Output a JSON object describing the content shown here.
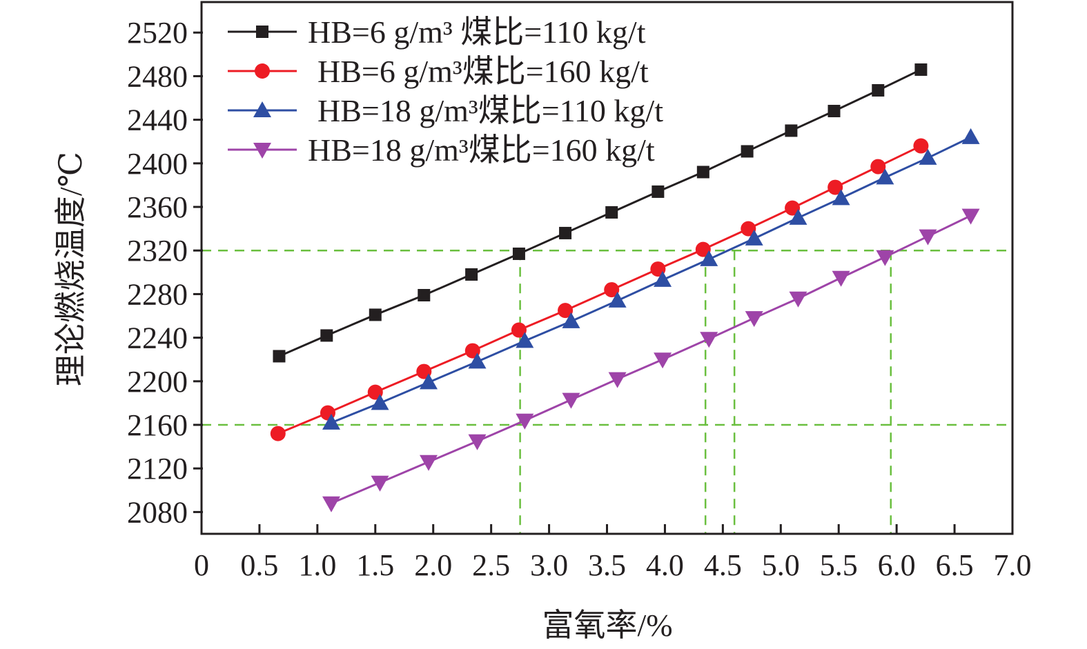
{
  "chart_data": {
    "type": "line",
    "xlabel": "富氧率/%",
    "ylabel": "理论燃烧温度/℃",
    "xlim": [
      0,
      7.0
    ],
    "ylim": [
      2060,
      2548
    ],
    "xticks": [
      "0",
      "0.5",
      "1.0",
      "1.5",
      "2.0",
      "2.5",
      "3.0",
      "3.5",
      "4.0",
      "4.5",
      "5.0",
      "5.5",
      "6.0",
      "6.5",
      "7.0"
    ],
    "yticks": [
      "2080",
      "2120",
      "2160",
      "2200",
      "2240",
      "2280",
      "2320",
      "2360",
      "2400",
      "2440",
      "2480",
      "2520"
    ],
    "grid": false,
    "legend_placement": "top-left",
    "series": [
      {
        "name": "HB=6 g/m³ 煤比=110 kg/t",
        "color": "#231f20",
        "marker": "square",
        "x": [
          0.67,
          1.08,
          1.5,
          1.92,
          2.33,
          2.74,
          3.14,
          3.54,
          3.94,
          4.33,
          4.71,
          5.09,
          5.46,
          5.84,
          6.21
        ],
        "y": [
          2223,
          2242,
          2261,
          2279,
          2298,
          2317,
          2336,
          2355,
          2374,
          2392,
          2411,
          2430,
          2448,
          2467,
          2486
        ]
      },
      {
        "name": "HB=6 g/m³煤比=160 kg/t",
        "color": "#ed1c24",
        "marker": "circle",
        "x": [
          0.66,
          1.09,
          1.5,
          1.92,
          2.34,
          2.74,
          3.14,
          3.54,
          3.94,
          4.33,
          4.72,
          5.1,
          5.47,
          5.84,
          6.21
        ],
        "y": [
          2152,
          2171,
          2190,
          2209,
          2228,
          2247,
          2265,
          2284,
          2303,
          2321,
          2340,
          2359,
          2378,
          2397,
          2416
        ]
      },
      {
        "name": "HB=18 g/m³煤比=110 kg/t",
        "color": "#2e4ea3",
        "marker": "triangle-up",
        "x": [
          1.12,
          1.54,
          1.96,
          2.38,
          2.79,
          3.19,
          3.59,
          3.98,
          4.38,
          4.77,
          5.15,
          5.52,
          5.9,
          6.27,
          6.64
        ],
        "y": [
          2162,
          2180,
          2199,
          2218,
          2237,
          2255,
          2274,
          2293,
          2312,
          2331,
          2350,
          2368,
          2387,
          2405,
          2424
        ]
      },
      {
        "name": "HB=18 g/m³煤比=160 kg/t",
        "color": "#9e44a8",
        "marker": "triangle-down",
        "x": [
          1.12,
          1.54,
          1.96,
          2.38,
          2.79,
          3.19,
          3.59,
          3.98,
          4.38,
          4.77,
          5.15,
          5.52,
          5.9,
          6.27,
          6.64
        ],
        "y": [
          2088,
          2107,
          2126,
          2145,
          2164,
          2183,
          2202,
          2220,
          2239,
          2258,
          2276,
          2295,
          2314,
          2333,
          2352
        ]
      }
    ],
    "reference_lines": {
      "color": "#6abf3f",
      "horizontal_y": [
        2320,
        2160
      ],
      "vertical_x": [
        2.75,
        4.35,
        4.6,
        5.95
      ],
      "vertical_from_y": 2320
    }
  }
}
